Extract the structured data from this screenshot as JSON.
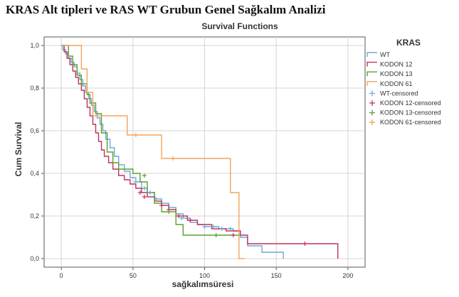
{
  "page_heading": "KRAS Alt tipleri ve RAS WT Grubun Genel Sağkalım Analizi",
  "chart_data": {
    "type": "line",
    "step": true,
    "title": "Survival Functions",
    "xlabel": "sağkalımsüresi",
    "ylabel": "Cum Survival",
    "xlim": [
      -12,
      212
    ],
    "ylim": [
      -0.04,
      1.04
    ],
    "x_ticks": [
      0,
      50,
      100,
      150,
      200
    ],
    "y_ticks": [
      0.0,
      0.2,
      0.4,
      0.6,
      0.8,
      1.0
    ],
    "y_tick_labels": [
      "0,0",
      "0,2",
      "0,4",
      "0,6",
      "0,8",
      "1,0"
    ],
    "grid": true,
    "legend_title": "KRAS",
    "legend_position": "right",
    "series": [
      {
        "name": "WT",
        "color": "#6fa8dc",
        "x": [
          0,
          1,
          3,
          5,
          7,
          9,
          11,
          13,
          15,
          17,
          19,
          21,
          23,
          25,
          27,
          29,
          31,
          34,
          37,
          40,
          44,
          48,
          52,
          56,
          60,
          65,
          70,
          75,
          80,
          85,
          90,
          95,
          100,
          105,
          110,
          115,
          120,
          125,
          130,
          140,
          155
        ],
        "values": [
          1.0,
          0.98,
          0.96,
          0.94,
          0.92,
          0.9,
          0.87,
          0.84,
          0.81,
          0.78,
          0.75,
          0.72,
          0.69,
          0.66,
          0.63,
          0.6,
          0.56,
          0.52,
          0.48,
          0.44,
          0.41,
          0.38,
          0.36,
          0.33,
          0.31,
          0.28,
          0.26,
          0.24,
          0.21,
          0.19,
          0.17,
          0.16,
          0.15,
          0.15,
          0.14,
          0.14,
          0.13,
          0.1,
          0.06,
          0.03,
          0.0
        ]
      },
      {
        "name": "KODON 12",
        "color": "#c0335a",
        "x": [
          0,
          2,
          4,
          6,
          8,
          10,
          12,
          14,
          16,
          18,
          20,
          22,
          24,
          26,
          28,
          30,
          33,
          36,
          40,
          44,
          48,
          52,
          56,
          60,
          65,
          70,
          75,
          80,
          88,
          95,
          105,
          115,
          125,
          130,
          170,
          193
        ],
        "values": [
          1.0,
          0.97,
          0.94,
          0.91,
          0.88,
          0.85,
          0.82,
          0.79,
          0.75,
          0.71,
          0.67,
          0.63,
          0.59,
          0.55,
          0.51,
          0.48,
          0.45,
          0.42,
          0.39,
          0.37,
          0.35,
          0.33,
          0.31,
          0.29,
          0.27,
          0.25,
          0.23,
          0.2,
          0.18,
          0.16,
          0.14,
          0.13,
          0.11,
          0.07,
          0.07,
          0.0
        ]
      },
      {
        "name": "KODON 13",
        "color": "#5aa02c",
        "x": [
          0,
          5,
          8,
          11,
          14,
          18,
          20,
          24,
          28,
          32,
          36,
          40,
          45,
          50,
          55,
          60,
          65,
          70,
          80,
          85,
          125
        ],
        "values": [
          1.0,
          0.95,
          0.91,
          0.86,
          0.82,
          0.77,
          0.73,
          0.68,
          0.59,
          0.5,
          0.45,
          0.42,
          0.42,
          0.4,
          0.36,
          0.31,
          0.26,
          0.22,
          0.16,
          0.11,
          0.11
        ]
      },
      {
        "name": "KODON 61",
        "color": "#f5a25d",
        "x": [
          0,
          14,
          18,
          22,
          26,
          46,
          58,
          70,
          118,
          124,
          128
        ],
        "values": [
          1.0,
          0.89,
          0.78,
          0.67,
          0.67,
          0.58,
          0.58,
          0.47,
          0.31,
          0.0,
          0.0
        ]
      }
    ],
    "censored": [
      {
        "name": "WT-censored",
        "color": "#6fa8dc",
        "x": [
          52,
          58,
          62,
          66,
          84,
          100,
          106,
          112,
          118
        ],
        "values": [
          0.36,
          0.33,
          0.31,
          0.28,
          0.19,
          0.15,
          0.15,
          0.14,
          0.14
        ]
      },
      {
        "name": "KODON 12-censored",
        "color": "#c0335a",
        "x": [
          55,
          58,
          70,
          75,
          82,
          90,
          120,
          170
        ],
        "values": [
          0.31,
          0.29,
          0.25,
          0.23,
          0.2,
          0.18,
          0.11,
          0.07
        ]
      },
      {
        "name": "KODON 13-censored",
        "color": "#5aa02c",
        "x": [
          58,
          75,
          108
        ],
        "values": [
          0.39,
          0.22,
          0.11
        ]
      },
      {
        "name": "KODON 61-censored",
        "color": "#f5a25d",
        "x": [
          52,
          78
        ],
        "values": [
          0.58,
          0.47
        ]
      }
    ]
  }
}
